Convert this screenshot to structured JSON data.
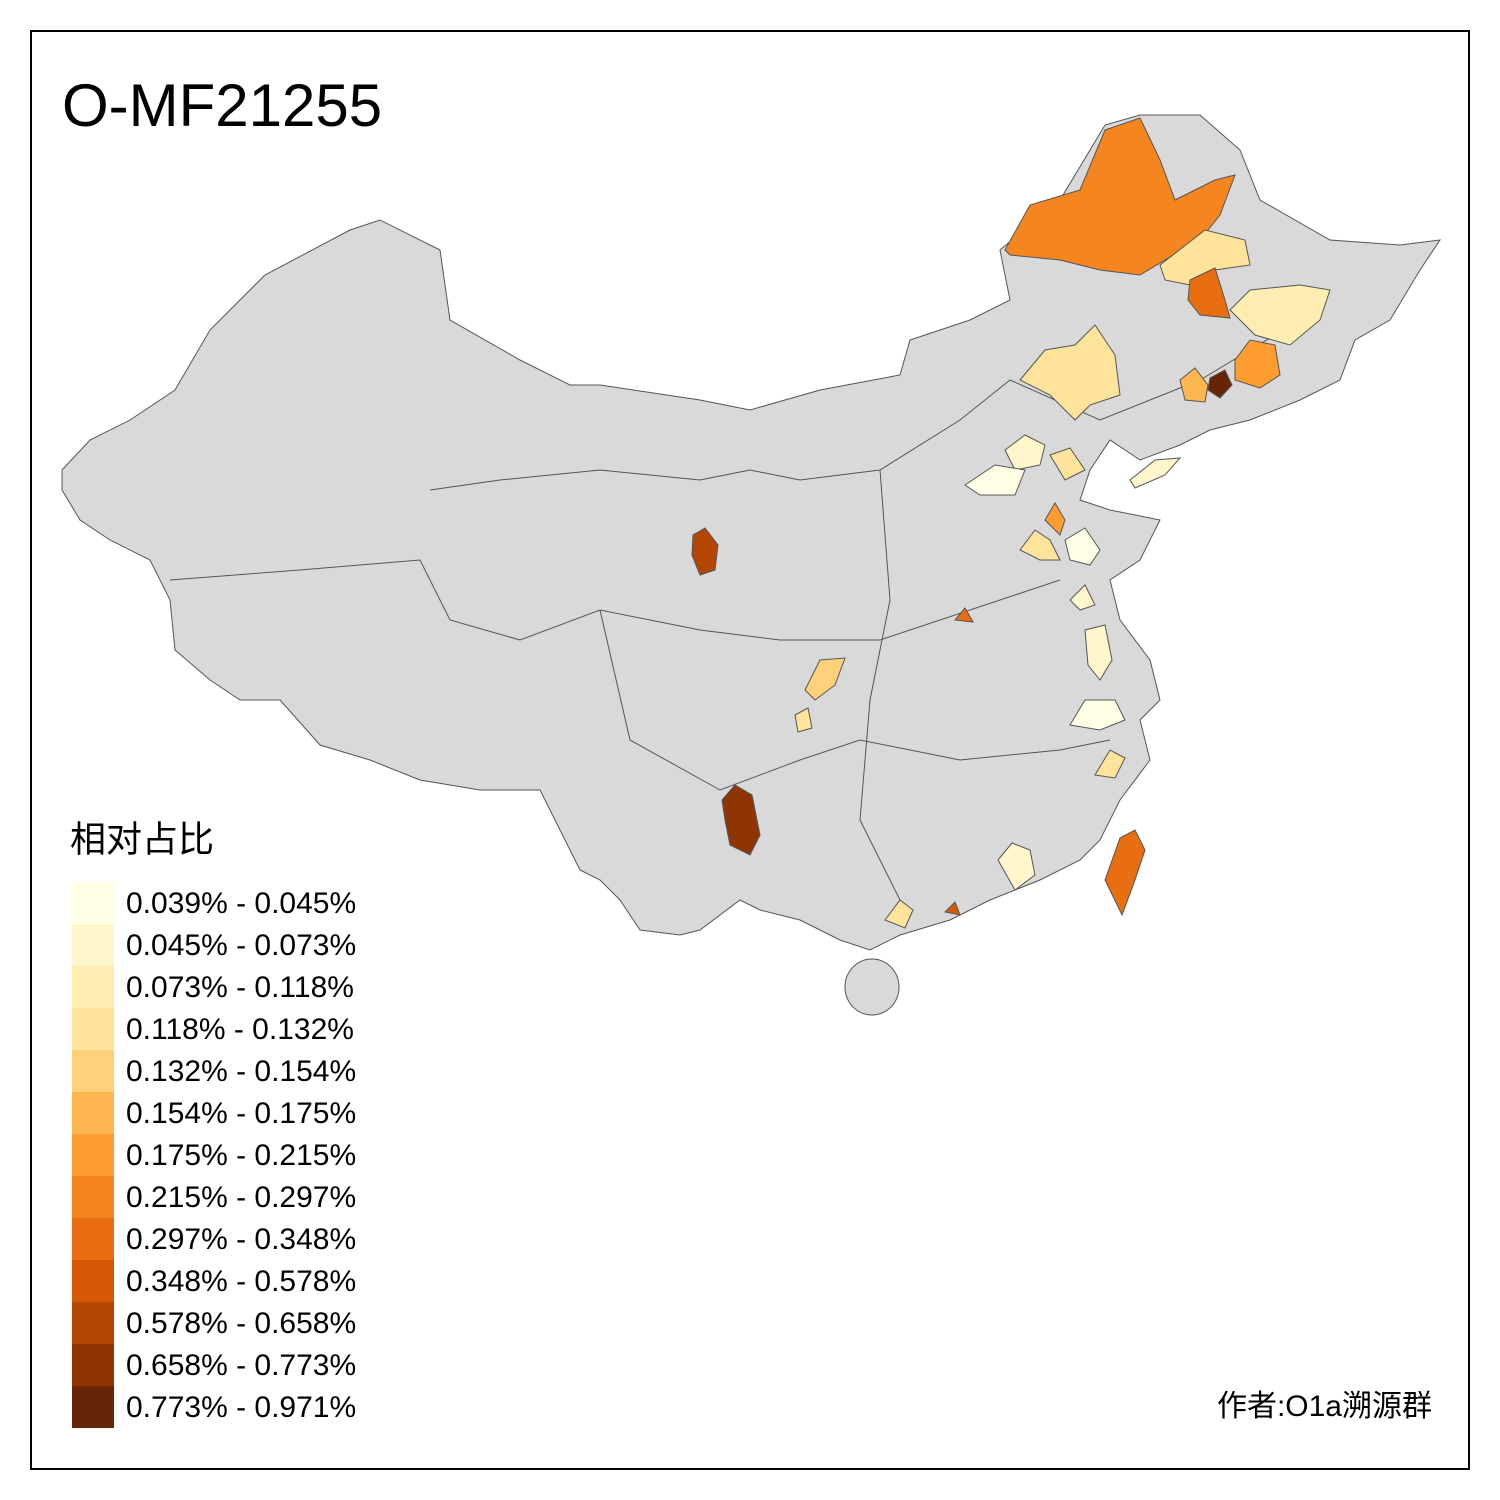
{
  "title": "O-MF21255",
  "legend": {
    "title": "相对占比",
    "items": [
      {
        "label": "0.039% - 0.045%",
        "color": "#ffffe5"
      },
      {
        "label": "0.045% - 0.073%",
        "color": "#fff7cb"
      },
      {
        "label": "0.073% - 0.118%",
        "color": "#ffedb2"
      },
      {
        "label": "0.118% - 0.132%",
        "color": "#fee39a"
      },
      {
        "label": "0.132% - 0.154%",
        "color": "#fed17a"
      },
      {
        "label": "0.154% - 0.175%",
        "color": "#feb750"
      },
      {
        "label": "0.175% - 0.215%",
        "color": "#fd9d31"
      },
      {
        "label": "0.215% - 0.297%",
        "color": "#f5851f"
      },
      {
        "label": "0.297% - 0.348%",
        "color": "#e96d11"
      },
      {
        "label": "0.348% - 0.578%",
        "color": "#d55807"
      },
      {
        "label": "0.578% - 0.658%",
        "color": "#b44503"
      },
      {
        "label": "0.658% - 0.773%",
        "color": "#8f3503"
      },
      {
        "label": "0.773% - 0.971%",
        "color": "#672406"
      }
    ]
  },
  "author": "作者:O1a溯源群"
}
